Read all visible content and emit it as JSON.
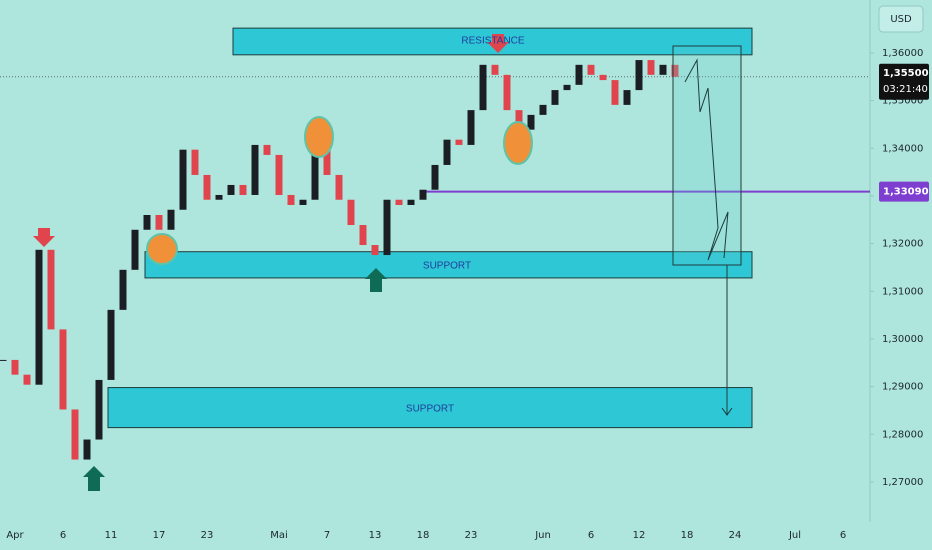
{
  "chart_data": {
    "type": "candlestick",
    "currency": "USD",
    "categories": [
      null,
      "Apr",
      null,
      null,
      null,
      "6",
      null,
      null,
      null,
      "11",
      null,
      null,
      null,
      "17",
      null,
      null,
      null,
      "23",
      null,
      null,
      null,
      null,
      null,
      "Mai",
      null,
      null,
      null,
      "7",
      null,
      null,
      null,
      "13",
      null,
      null,
      null,
      "18",
      null,
      null,
      null,
      "23",
      null,
      null,
      null,
      null,
      null,
      "Jun",
      null,
      null,
      null,
      "6",
      null,
      null,
      null,
      "12",
      null,
      null,
      null,
      "18",
      null,
      null,
      null,
      "24",
      null,
      null,
      null,
      null,
      "Jul",
      null,
      null,
      null,
      "6"
    ],
    "values": [
      1.2956,
      1.2925,
      1.2904,
      1.3187,
      1.302,
      1.2852,
      1.2747,
      1.2789,
      1.2914,
      1.3061,
      1.3145,
      1.3229,
      1.326,
      1.3229,
      1.3271,
      1.3397,
      1.3344,
      1.3292,
      1.3302,
      1.3323,
      1.3302,
      1.3407,
      1.3386,
      1.3302,
      1.3281,
      1.3292,
      1.3397,
      1.3344,
      1.3292,
      1.3239,
      1.3197,
      1.3176,
      1.3292,
      1.3281,
      1.3292,
      1.3313,
      1.3365,
      1.3418,
      1.3407,
      1.348,
      1.3575,
      1.3554,
      1.348,
      1.3439,
      1.347,
      1.3491,
      1.3522,
      1.3533,
      1.3575,
      1.3554,
      1.3543,
      1.3491,
      1.3522,
      1.3585,
      1.3554,
      1.3575,
      1.355,
      null,
      null,
      null,
      null,
      null,
      null,
      null,
      null,
      null,
      null,
      null,
      null,
      null,
      null
    ],
    "up_color": "#1b1f24",
    "down_color": "#e0454e",
    "ylim": [
      1.2616,
      1.3711
    ],
    "yticks": [
      {
        "value": 1.36,
        "label": "1,36000"
      },
      {
        "value": 1.35,
        "label": "1,35000"
      },
      {
        "value": 1.34,
        "label": "1,34000"
      },
      {
        "value": 1.33,
        "label": "1,33000"
      },
      {
        "value": 1.32,
        "label": "1,32000"
      },
      {
        "value": 1.31,
        "label": "1,31000"
      },
      {
        "value": 1.3,
        "label": "1,30000"
      },
      {
        "value": 1.29,
        "label": "1,29000"
      },
      {
        "value": 1.28,
        "label": "1,28000"
      },
      {
        "value": 1.27,
        "label": "1,27000"
      }
    ],
    "zones": [
      {
        "label": "RESISTANCE",
        "low": 1.3596,
        "high": 1.3652
      },
      {
        "label": "SUPPORT",
        "low": 1.3128,
        "high": 1.3183
      },
      {
        "label": "SUPPORT",
        "low": 1.2814,
        "high": 1.2898
      }
    ],
    "level": {
      "value": 1.3309,
      "label": "1,33090",
      "color": "#7e3fd1"
    },
    "last_price": {
      "value": 1.355,
      "label": "1,35500",
      "countdown": "03:21:40"
    }
  }
}
